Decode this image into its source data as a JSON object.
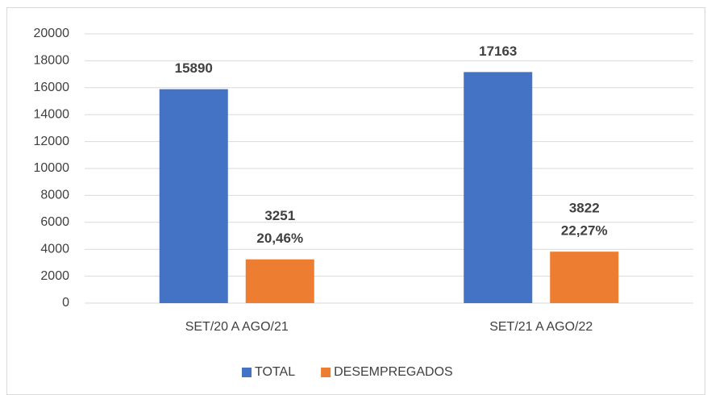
{
  "chart_data": {
    "type": "bar",
    "categories": [
      "SET/20 A AGO/21",
      "SET/21 A AGO/22"
    ],
    "series": [
      {
        "name": "TOTAL",
        "color": "#4472c4",
        "values": [
          15890,
          17163
        ]
      },
      {
        "name": "DESEMPREGADOS",
        "color": "#ed7d31",
        "values": [
          3251,
          3822
        ],
        "percent_labels": [
          "20,46%",
          "22,27%"
        ]
      }
    ],
    "ylim": [
      0,
      20000
    ],
    "yticks": [
      0,
      2000,
      4000,
      6000,
      8000,
      10000,
      12000,
      14000,
      16000,
      18000,
      20000
    ],
    "grid": true,
    "legend": "bottom"
  }
}
